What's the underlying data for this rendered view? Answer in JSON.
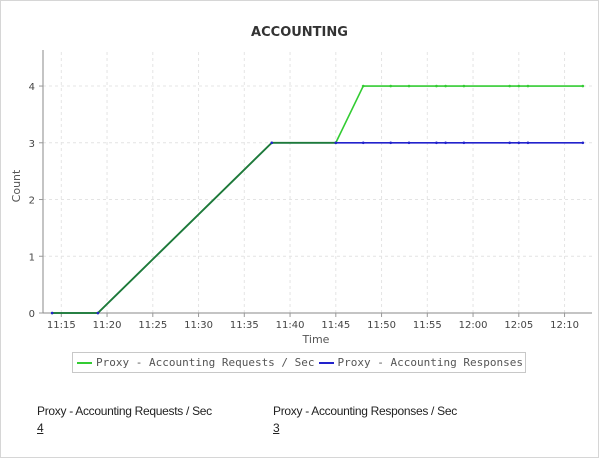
{
  "chart_data": {
    "type": "line",
    "title": "ACCOUNTING",
    "xlabel": "Time",
    "ylabel": "Count",
    "xlim": [
      "11:13",
      "12:13"
    ],
    "ylim": [
      0,
      4.6
    ],
    "x_ticks": [
      "11:15",
      "11:20",
      "11:25",
      "11:30",
      "11:35",
      "11:40",
      "11:45",
      "11:50",
      "11:55",
      "12:00",
      "12:05",
      "12:10"
    ],
    "y_ticks": [
      0,
      1,
      2,
      3,
      4
    ],
    "grid": true,
    "legend": "bottom",
    "series": [
      {
        "name": "Proxy - Accounting Requests / Sec",
        "color": "#33cc33",
        "points": [
          [
            "11:14",
            0
          ],
          [
            "11:19",
            0
          ],
          [
            "11:38",
            3
          ],
          [
            "11:45",
            3
          ],
          [
            "11:48",
            4
          ],
          [
            "11:51",
            4
          ],
          [
            "11:53",
            4
          ],
          [
            "11:56",
            4
          ],
          [
            "11:57",
            4
          ],
          [
            "11:59",
            4
          ],
          [
            "12:04",
            4
          ],
          [
            "12:05",
            4
          ],
          [
            "12:06",
            4
          ],
          [
            "12:12",
            4
          ]
        ]
      },
      {
        "name": "Proxy - Accounting Responses / Sec",
        "color": "#2222cc",
        "points": [
          [
            "11:14",
            0
          ],
          [
            "11:19",
            0
          ],
          [
            "11:38",
            3
          ],
          [
            "11:45",
            3
          ],
          [
            "11:48",
            3
          ],
          [
            "11:51",
            3
          ],
          [
            "11:53",
            3
          ],
          [
            "11:56",
            3
          ],
          [
            "11:57",
            3
          ],
          [
            "11:59",
            3
          ],
          [
            "12:04",
            3
          ],
          [
            "12:05",
            3
          ],
          [
            "12:06",
            3
          ],
          [
            "12:12",
            3
          ]
        ]
      }
    ]
  },
  "stats": [
    {
      "label": "Proxy - Accounting Requests / Sec",
      "value": "4"
    },
    {
      "label": "Proxy - Accounting Responses / Sec",
      "value": "3"
    }
  ]
}
